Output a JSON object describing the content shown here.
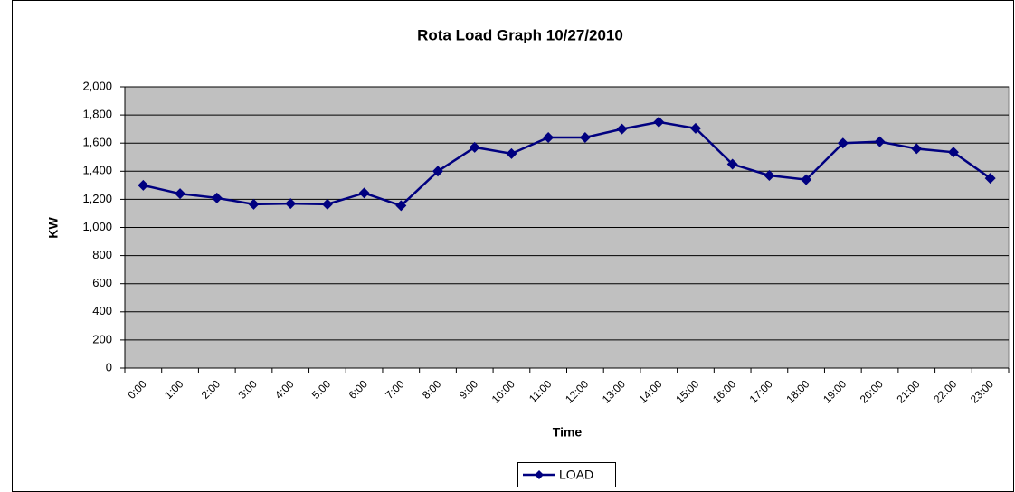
{
  "chart_data": {
    "type": "line",
    "title": "Rota Load Graph 10/27/2010",
    "x_label": "Time",
    "y_label": "KW",
    "categories": [
      "0:00",
      "1:00",
      "2:00",
      "3:00",
      "4:00",
      "5:00",
      "6:00",
      "7:00",
      "8:00",
      "9:00",
      "10:00",
      "11:00",
      "12:00",
      "13:00",
      "14:00",
      "15:00",
      "16:00",
      "17:00",
      "18:00",
      "19:00",
      "20:00",
      "21:00",
      "22:00",
      "23:00"
    ],
    "series": [
      {
        "name": "LOAD",
        "color": "#000080",
        "values": [
          1300,
          1240,
          1210,
          1165,
          1170,
          1165,
          1245,
          1155,
          1400,
          1570,
          1525,
          1640,
          1640,
          1700,
          1750,
          1705,
          1450,
          1370,
          1340,
          1600,
          1610,
          1560,
          1535,
          1350
        ]
      }
    ],
    "ylim": [
      0,
      2000
    ],
    "yticks": [
      0,
      200,
      400,
      600,
      800,
      {
        "value": 1000,
        "label": "1,000"
      },
      {
        "value": 1200,
        "label": "1,200"
      },
      {
        "value": 1400,
        "label": "1,400"
      },
      {
        "value": 1600,
        "label": "1,600"
      },
      {
        "value": 1800,
        "label": "1,800"
      },
      {
        "value": 2000,
        "label": "2,000"
      }
    ],
    "grid": true,
    "legend": "bottom"
  }
}
